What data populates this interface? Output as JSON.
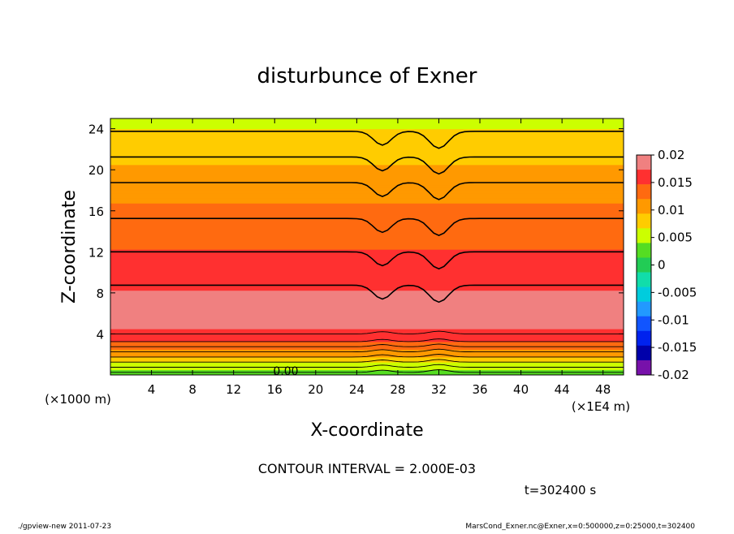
{
  "chart_data": {
    "type": "heatmap",
    "title": "disturbunce of Exner",
    "xlabel": "X-coordinate",
    "ylabel": "Z-coordinate",
    "x_unit_label": "(×1E4 m)",
    "y_unit_label": "(×1000 m)",
    "xlim": [
      0,
      50
    ],
    "ylim": [
      0,
      25
    ],
    "x_ticks": [
      4,
      8,
      12,
      16,
      20,
      24,
      28,
      32,
      36,
      40,
      44,
      48
    ],
    "y_ticks": [
      4,
      8,
      12,
      16,
      20,
      24
    ],
    "colorbar": {
      "range": [
        -0.02,
        0.02
      ],
      "tick_labels": [
        "0.02",
        "0.015",
        "0.01",
        "0.005",
        "0",
        "-0.005",
        "-0.01",
        "-0.015",
        "-0.02"
      ],
      "colors": [
        "#f08080",
        "#ff3030",
        "#ff6a10",
        "#ff9900",
        "#ffcc00",
        "#ccff00",
        "#55dd22",
        "#22cc55",
        "#11ddaa",
        "#00ccdd",
        "#2299ff",
        "#1155ff",
        "#0022ee",
        "#0000aa",
        "#7711aa"
      ]
    },
    "profile_levels": [
      {
        "z": 0.0,
        "value": 0.002
      },
      {
        "z": 0.5,
        "value": 0.004
      },
      {
        "z": 1.0,
        "value": 0.006
      },
      {
        "z": 1.5,
        "value": 0.008
      },
      {
        "z": 2.0,
        "value": 0.01
      },
      {
        "z": 2.5,
        "value": 0.012
      },
      {
        "z": 3.0,
        "value": 0.014
      },
      {
        "z": 3.5,
        "value": 0.016
      },
      {
        "z": 4.0,
        "value": 0.017
      },
      {
        "z": 6.5,
        "value": 0.0185
      },
      {
        "z": 10.0,
        "value": 0.016
      },
      {
        "z": 13.5,
        "value": 0.014
      },
      {
        "z": 18.5,
        "value": 0.011
      },
      {
        "z": 23.5,
        "value": 0.007
      },
      {
        "z": 25.0,
        "value": 0.006
      }
    ],
    "contour_interval": "2.000E-03",
    "contour_label": "0.00"
  },
  "annotations": {
    "contour_interval_text": "CONTOUR INTERVAL = 2.000E-03",
    "time_text": "t=302400 s",
    "footer_left": "./gpview-new   2011-07-23",
    "footer_right": "MarsCond_Exner.nc@Exner,x=0:500000,z=0:25000,t=302400"
  }
}
